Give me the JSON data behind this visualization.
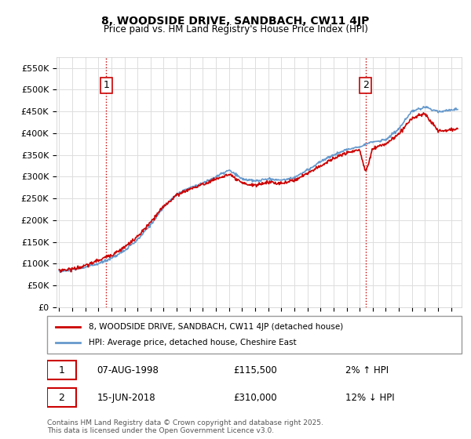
{
  "title": "8, WOODSIDE DRIVE, SANDBACH, CW11 4JP",
  "subtitle": "Price paid vs. HM Land Registry's House Price Index (HPI)",
  "legend_label_red": "8, WOODSIDE DRIVE, SANDBACH, CW11 4JP (detached house)",
  "legend_label_blue": "HPI: Average price, detached house, Cheshire East",
  "annotation1_label": "1",
  "annotation1_date": "07-AUG-1998",
  "annotation1_price": "£115,500",
  "annotation1_hpi": "2% ↑ HPI",
  "annotation2_label": "2",
  "annotation2_date": "15-JUN-2018",
  "annotation2_price": "£310,000",
  "annotation2_hpi": "12% ↓ HPI",
  "footer": "Contains HM Land Registry data © Crown copyright and database right 2025.\nThis data is licensed under the Open Government Licence v3.0.",
  "ylim": [
    0,
    575000
  ],
  "yticks": [
    0,
    50000,
    100000,
    150000,
    200000,
    250000,
    300000,
    350000,
    400000,
    450000,
    500000,
    550000
  ],
  "ytick_labels": [
    "£0",
    "£50K",
    "£100K",
    "£150K",
    "£200K",
    "£250K",
    "£300K",
    "£350K",
    "£400K",
    "£450K",
    "£500K",
    "£550K"
  ],
  "red_color": "#cc0000",
  "blue_color": "#6699cc",
  "vline_color": "#cc0000",
  "vline_style": ":",
  "background_color": "#ffffff",
  "plot_bg_color": "#ffffff",
  "grid_color": "#dddddd",
  "sale1_year": 1998.6,
  "sale1_price": 115500,
  "sale2_year": 2018.45,
  "sale2_price": 310000
}
